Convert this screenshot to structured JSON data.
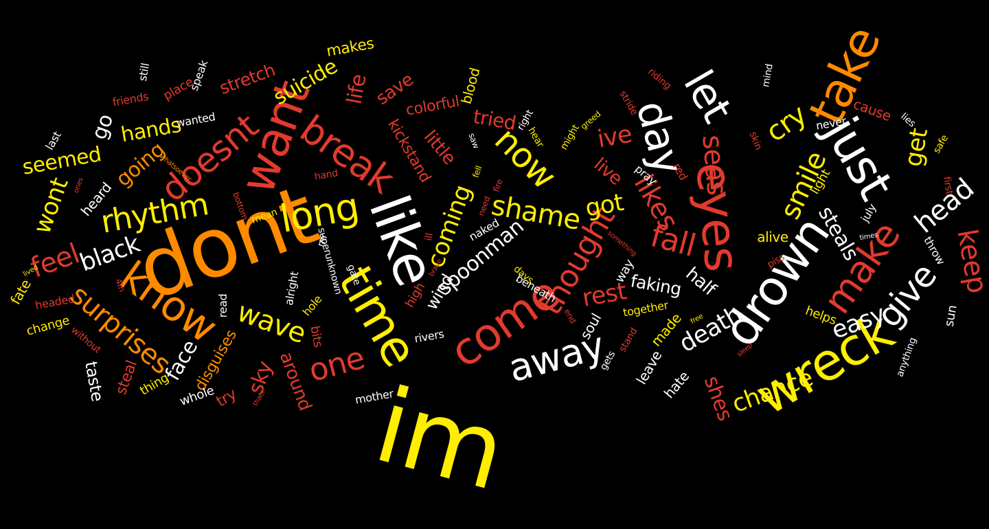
{
  "palette": {
    "background": "#000000",
    "yellow": "#ffee00",
    "gold": "#ffc400",
    "orange": "#ff8a00",
    "red": "#e23a2e",
    "white": "#ffffff"
  },
  "words": [
    "im",
    "dont",
    "like",
    "time",
    "want",
    "wreck",
    "drown",
    "take",
    "just",
    "eyes",
    "let",
    "day",
    "come",
    "break",
    "long",
    "know",
    "doesnt",
    "now",
    "thought",
    "away",
    "make",
    "give",
    "one",
    "rhythm",
    "surprises",
    "wave",
    "shame",
    "fall",
    "smile",
    "likes",
    "cry",
    "head",
    "spoonman",
    "feel",
    "black",
    "wont",
    "coming",
    "faking",
    "death",
    "rest",
    "easy",
    "seas",
    "keep",
    "get",
    "chance",
    "shes",
    "steals",
    "got",
    "ive",
    "life",
    "suicide",
    "stretch",
    "seemed",
    "going",
    "hands",
    "go",
    "tried",
    "little",
    "kickstand",
    "save",
    "colorful",
    "blood",
    "makes",
    "still",
    "speak",
    "place",
    "friends",
    "wanted",
    "last",
    "heard",
    "sky",
    "face",
    "around",
    "disguises",
    "live",
    "half",
    "alive",
    "half",
    "leave",
    "hate",
    "made",
    "together",
    "soul",
    "rivers",
    "mother",
    "whole",
    "try",
    "steal",
    "taste",
    "thing",
    "fate",
    "change",
    "headed",
    "without",
    "read",
    "hole",
    "alright",
    "gate",
    "bits",
    "high",
    "wind",
    "superunknown",
    "mr",
    "beneath",
    "naked",
    "need",
    "days",
    "fire",
    "way",
    "pray",
    "red",
    "light",
    "july",
    "throw",
    "sun",
    "anything",
    "helps",
    "piss",
    "cause",
    "never",
    "lies",
    "safe",
    "first",
    "skin",
    "riding",
    "stride",
    "greed",
    "might",
    "hear",
    "right",
    "saw",
    "fell",
    "hand",
    "bottom",
    "mean",
    "ones",
    "lived",
    "4th",
    "ill",
    "brave",
    "whatsoever",
    "something",
    "times",
    "end",
    "gets",
    "free",
    "sleep",
    "stand",
    "thats",
    "mind"
  ]
}
